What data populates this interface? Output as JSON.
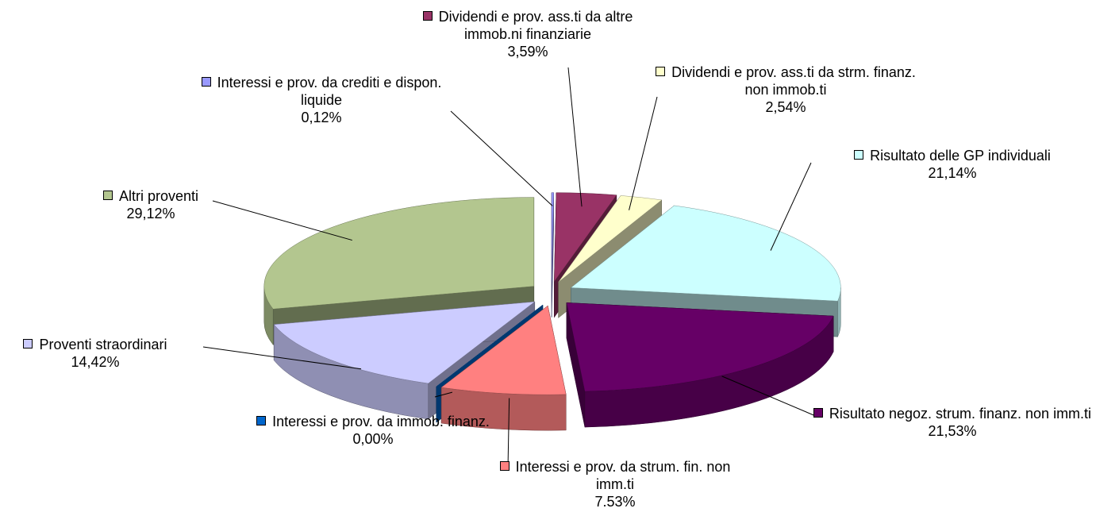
{
  "chart_data": {
    "type": "pie3d",
    "categories": [
      "Interessi e prov. da crediti e dispon. liquide",
      "Dividendi e prov. ass.ti da altre immob.ni finanziarie",
      "Dividendi e prov. ass.ti da strm. finanz. non immob.ti",
      "Risultato delle GP individuali",
      "Risultato negoz. strum. finanz. non imm.ti",
      "Interessi e prov. da strum. fin. non imm.ti",
      "Interessi e prov. da immob. finanz.",
      "Proventi straordinari",
      "Altri proventi"
    ],
    "values": [
      0.12,
      3.59,
      2.54,
      21.14,
      21.53,
      7.53,
      0.0,
      14.42,
      29.12
    ],
    "value_labels": [
      "0,12%",
      "3,59%",
      "2,54%",
      "21,14%",
      "21,53%",
      "7.53%",
      "0,00%",
      "14,42%",
      "29,12%"
    ],
    "colors": [
      "#9999ff",
      "#993366",
      "#ffffcc",
      "#ccffff",
      "#660066",
      "#ff8080",
      "#0066cc",
      "#ccccff",
      "#b3c68f"
    ]
  }
}
